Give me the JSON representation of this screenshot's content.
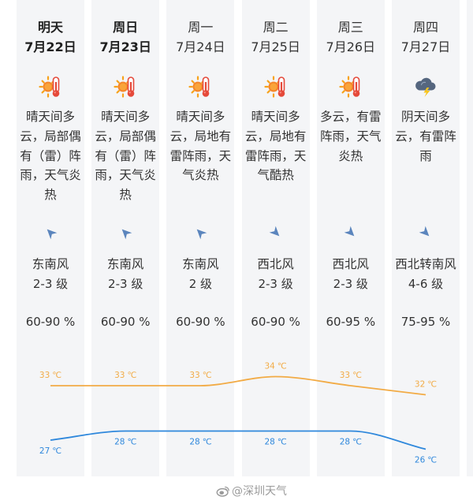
{
  "days": [
    {
      "day": "明天",
      "date": "7月22日",
      "emphasis": true,
      "weather_icon": "sun-thermometer-icon",
      "description": [
        "晴天间多",
        "云，局部偶",
        "有（雷）阵",
        "雨，天气炎",
        "热"
      ],
      "wind_icon": "arrow-northwest-icon",
      "wind_direction": "东南风",
      "wind_level": "2-3 级",
      "humidity": "60-90 %"
    },
    {
      "day": "周日",
      "date": "7月23日",
      "emphasis": true,
      "weather_icon": "sun-thermometer-icon",
      "description": [
        "晴天间多",
        "云，局部偶",
        "有（雷）阵",
        "雨，天气炎",
        "热"
      ],
      "wind_icon": "arrow-northwest-icon",
      "wind_direction": "东南风",
      "wind_level": "2-3 级",
      "humidity": "60-90 %"
    },
    {
      "day": "周一",
      "date": "7月24日",
      "emphasis": false,
      "weather_icon": "sun-thermometer-icon",
      "description": [
        "晴天间多",
        "云，局地有",
        "雷阵雨，天",
        "气炎热"
      ],
      "wind_icon": "arrow-northwest-icon",
      "wind_direction": "东南风",
      "wind_level": "2 级",
      "humidity": "60-90 %"
    },
    {
      "day": "周二",
      "date": "7月25日",
      "emphasis": false,
      "weather_icon": "sun-thermometer-icon",
      "description": [
        "晴天间多",
        "云，局地有",
        "雷阵雨，天",
        "气酷热"
      ],
      "wind_icon": "arrow-southeast-icon",
      "wind_direction": "西北风",
      "wind_level": "2-3 级",
      "humidity": "60-90 %"
    },
    {
      "day": "周三",
      "date": "7月26日",
      "emphasis": false,
      "weather_icon": "sun-thermometer-icon",
      "description": [
        "多云，有雷",
        "阵雨，天气",
        "炎热"
      ],
      "wind_icon": "arrow-southeast-icon",
      "wind_direction": "西北风",
      "wind_level": "2-3 级",
      "humidity": "60-95 %"
    },
    {
      "day": "周四",
      "date": "7月27日",
      "emphasis": false,
      "weather_icon": "thunder-cloud-icon",
      "description": [
        "阴天间多",
        "云，有雷阵",
        "雨"
      ],
      "wind_icon": "arrow-southeast-icon",
      "wind_direction": "西北转南风",
      "wind_level": "4-6 级",
      "humidity": "75-95 %"
    }
  ],
  "chart_data": {
    "type": "line",
    "high_temps": [
      33,
      33,
      33,
      34,
      33,
      32
    ],
    "low_temps": [
      27,
      28,
      28,
      28,
      28,
      26
    ],
    "unit": "℃",
    "high_color": "#f2ab45",
    "low_color": "#2f88dc"
  },
  "watermark": {
    "text": "@深圳天气",
    "icon": "weibo-logo-icon"
  }
}
